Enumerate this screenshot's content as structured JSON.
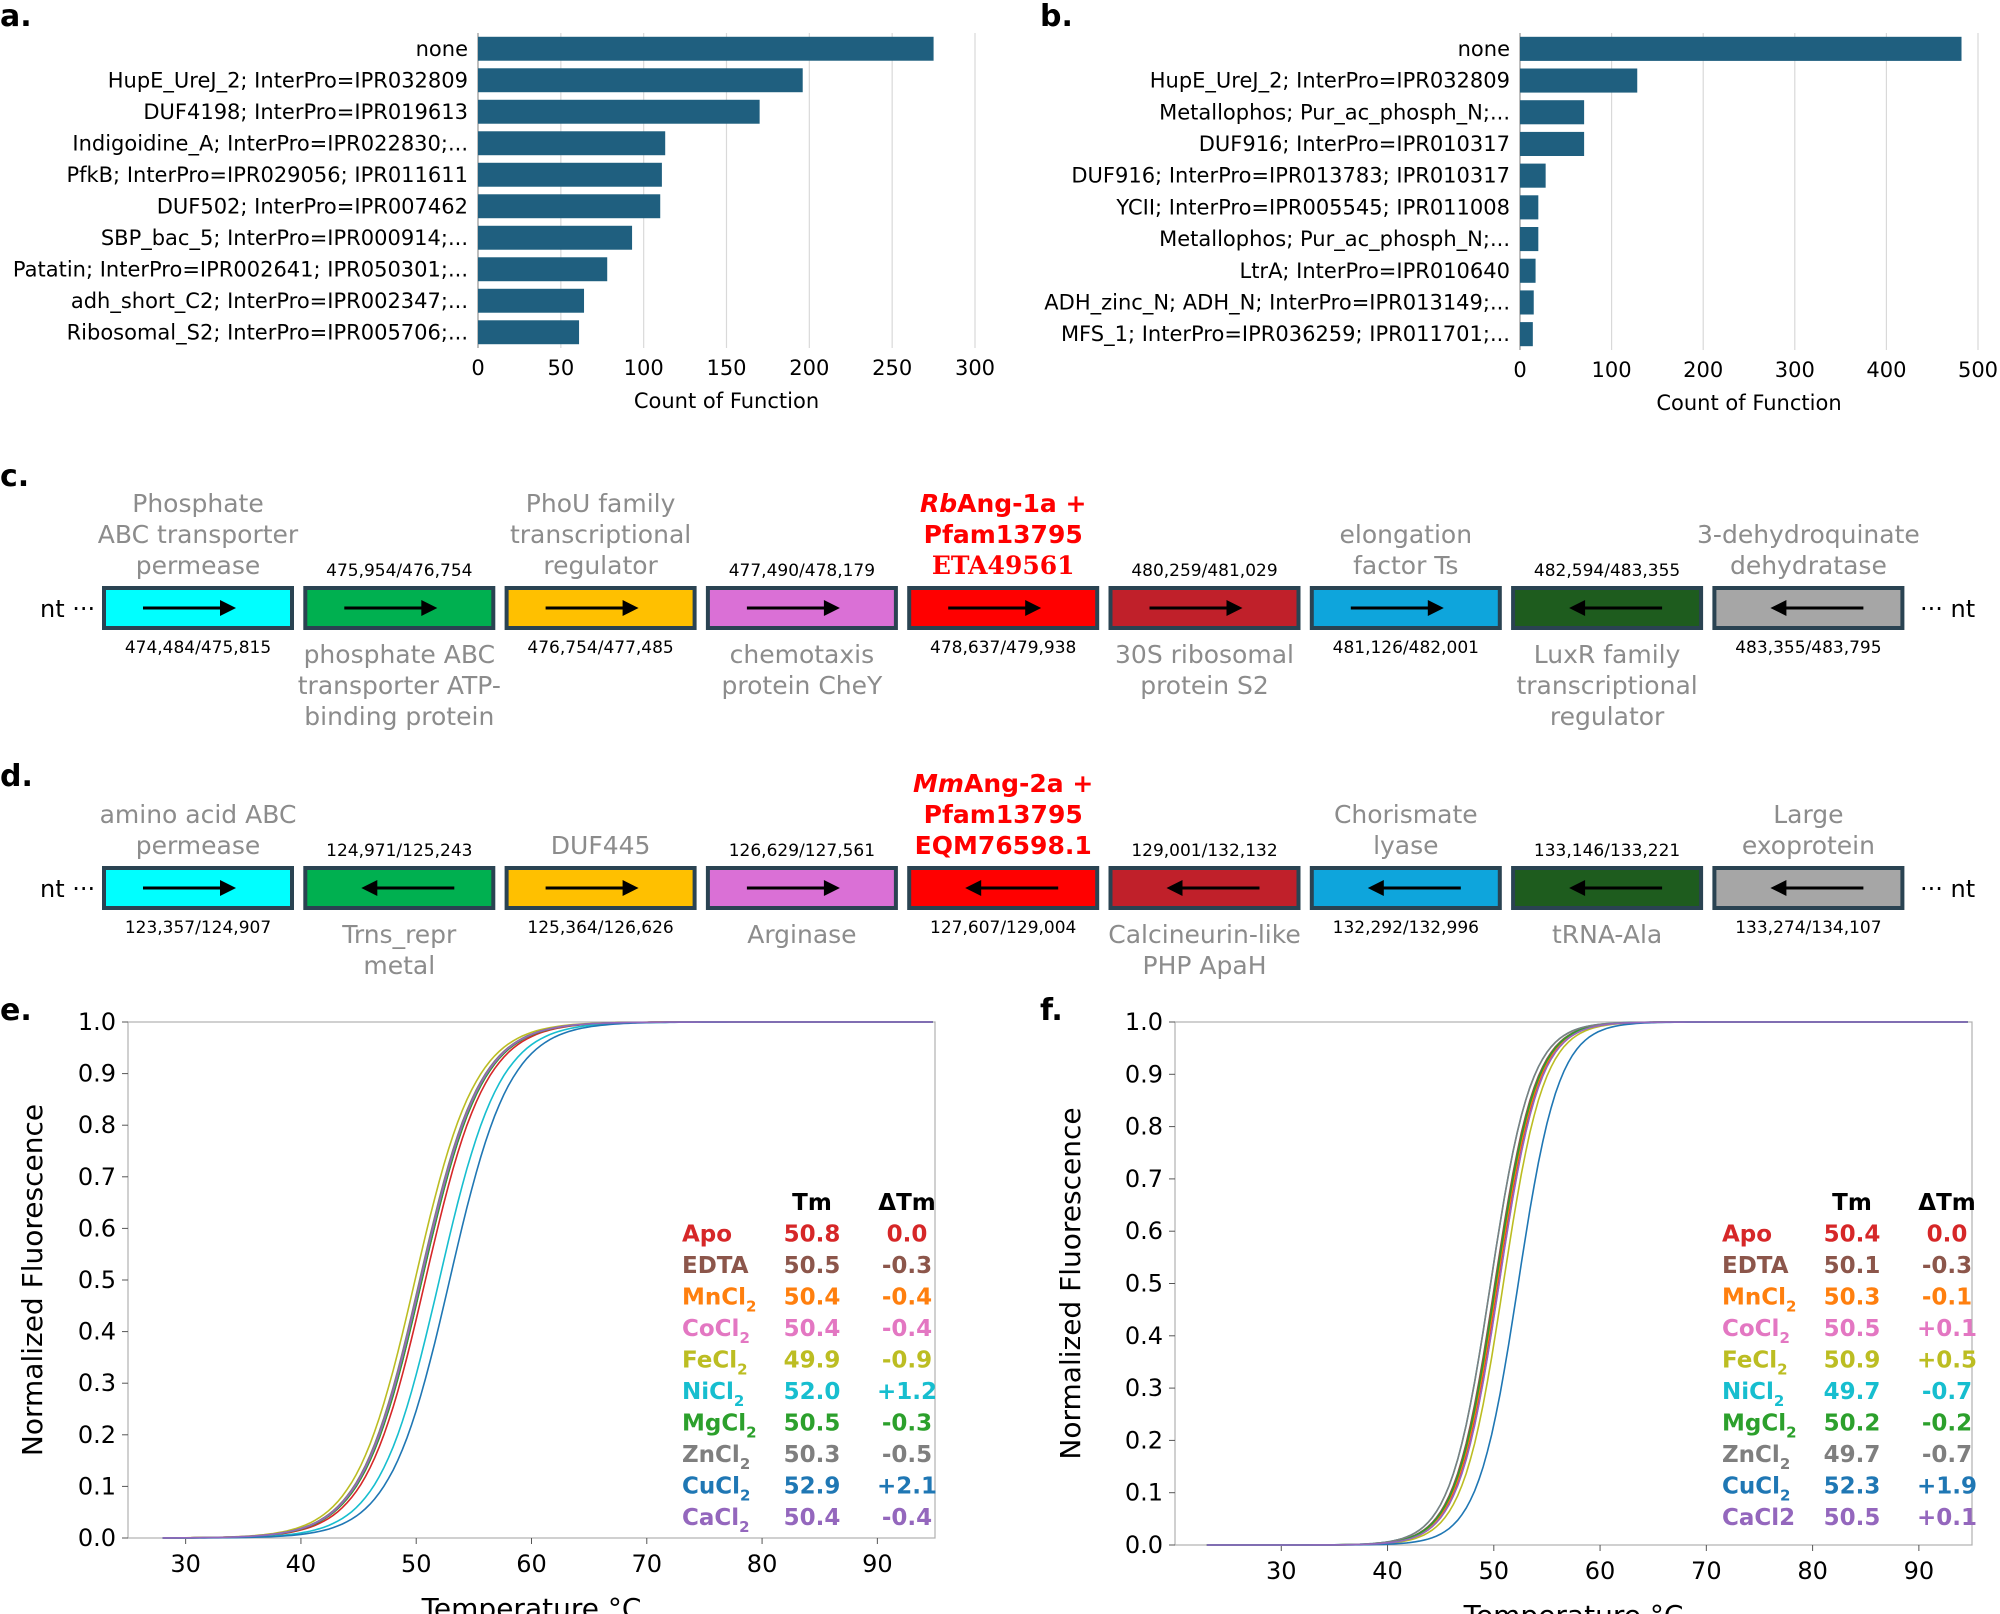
{
  "panel_labels": {
    "a": "a.",
    "b": "b.",
    "c": "c.",
    "d": "d.",
    "e": "e.",
    "f": "f."
  },
  "chart_data": [
    {
      "panel": "a",
      "type": "bar",
      "orientation": "horizontal",
      "color": "#1f5f7f",
      "categories": [
        "none",
        "HupE_UreJ_2; InterPro=IPR032809",
        "DUF4198; InterPro=IPR019613",
        "Indigoidine_A; InterPro=IPR022830;...",
        "PfkB; InterPro=IPR029056; IPR011611",
        "DUF502; InterPro=IPR007462",
        "SBP_bac_5; InterPro=IPR000914;...",
        "Patatin; InterPro=IPR002641; IPR050301;...",
        "adh_short_C2; InterPro=IPR002347;...",
        "Ribosomal_S2; InterPro=IPR005706;..."
      ],
      "values": [
        275,
        196,
        170,
        113,
        111,
        110,
        93,
        78,
        64,
        61
      ],
      "xlim": [
        0,
        300
      ],
      "xticks": [
        "0",
        "50",
        "100",
        "150",
        "200",
        "250",
        "300"
      ],
      "xlabel": "Count of Function"
    },
    {
      "panel": "b",
      "type": "bar",
      "orientation": "horizontal",
      "color": "#1f5f7f",
      "categories": [
        "none",
        "HupE_UreJ_2; InterPro=IPR032809",
        "Metallophos; Pur_ac_phosph_N;...",
        "DUF916; InterPro=IPR010317",
        "DUF916; InterPro=IPR013783; IPR010317",
        "YCII; InterPro=IPR005545; IPR011008",
        "Metallophos; Pur_ac_phosph_N;...",
        "LtrA; InterPro=IPR010640",
        "ADH_zinc_N; ADH_N; InterPro=IPR013149;...",
        "MFS_1; InterPro=IPR036259; IPR011701;..."
      ],
      "values": [
        482,
        128,
        70,
        70,
        28,
        20,
        20,
        17,
        15,
        14
      ],
      "xlim": [
        0,
        500
      ],
      "xticks": [
        "0",
        "100",
        "200",
        "300",
        "400",
        "500"
      ],
      "xlabel": "Count of Function"
    },
    {
      "panel": "e",
      "type": "line",
      "xlabel": "Temperature °C",
      "ylabel": "Normalized Fluorescence",
      "xlim": [
        25,
        95
      ],
      "ylim": [
        0,
        1
      ],
      "xticks": [
        "30",
        "40",
        "50",
        "60",
        "70",
        "80",
        "90"
      ],
      "yticks": [
        "0.0",
        "0.1",
        "0.2",
        "0.3",
        "0.4",
        "0.5",
        "0.6",
        "0.7",
        "0.8",
        "0.9",
        "1.0"
      ],
      "legend_headers": {
        "tm": "Tm",
        "dtm": "ΔTm"
      },
      "series": [
        {
          "name": "Apo",
          "sub": "",
          "color": "#d62728",
          "tm": "50.8",
          "dtm": "0.0",
          "tm_value": 50.8
        },
        {
          "name": "EDTA",
          "sub": "",
          "color": "#8c564b",
          "tm": "50.5",
          "dtm": "-0.3",
          "tm_value": 50.5
        },
        {
          "name": "MnCl",
          "sub": "2",
          "color": "#ff7f0e",
          "tm": "50.4",
          "dtm": "-0.4",
          "tm_value": 50.4
        },
        {
          "name": "CoCl",
          "sub": "2",
          "color": "#e377c2",
          "tm": "50.4",
          "dtm": "-0.4",
          "tm_value": 50.4
        },
        {
          "name": "FeCl",
          "sub": "2",
          "color": "#bcbd22",
          "tm": "49.9",
          "dtm": "-0.9",
          "tm_value": 49.9
        },
        {
          "name": "NiCl",
          "sub": "2",
          "color": "#17becf",
          "tm": "52.0",
          "dtm": "+1.2",
          "tm_value": 52.0
        },
        {
          "name": "MgCl",
          "sub": "2",
          "color": "#2ca02c",
          "tm": "50.5",
          "dtm": "-0.3",
          "tm_value": 50.5
        },
        {
          "name": "ZnCl",
          "sub": "2",
          "color": "#7f7f7f",
          "tm": "50.3",
          "dtm": "-0.5",
          "tm_value": 50.3
        },
        {
          "name": "CuCl",
          "sub": "2",
          "color": "#1f77b4",
          "tm": "52.9",
          "dtm": "+2.1",
          "tm_value": 52.9
        },
        {
          "name": "CaCl",
          "sub": "2",
          "color": "#9467bd",
          "tm": "50.4",
          "dtm": "-0.4",
          "tm_value": 50.4
        }
      ]
    },
    {
      "panel": "f",
      "type": "line",
      "xlabel": "Temperature °C",
      "ylabel": "Normalized Fluorescence",
      "xlim": [
        20,
        95
      ],
      "ylim": [
        0,
        1
      ],
      "xticks": [
        "30",
        "40",
        "50",
        "60",
        "70",
        "80",
        "90"
      ],
      "yticks": [
        "0.0",
        "0.1",
        "0.2",
        "0.3",
        "0.4",
        "0.5",
        "0.6",
        "0.7",
        "0.8",
        "0.9",
        "1.0"
      ],
      "legend_headers": {
        "tm": "Tm",
        "dtm": "ΔTm"
      },
      "series": [
        {
          "name": "Apo",
          "sub": "",
          "color": "#d62728",
          "tm": "50.4",
          "dtm": "0.0",
          "tm_value": 50.4
        },
        {
          "name": "EDTA",
          "sub": "",
          "color": "#8c564b",
          "tm": "50.1",
          "dtm": "-0.3",
          "tm_value": 50.1
        },
        {
          "name": "MnCl",
          "sub": "2",
          "color": "#ff7f0e",
          "tm": "50.3",
          "dtm": "-0.1",
          "tm_value": 50.3
        },
        {
          "name": "CoCl",
          "sub": "2",
          "color": "#e377c2",
          "tm": "50.5",
          "dtm": "+0.1",
          "tm_value": 50.5
        },
        {
          "name": "FeCl",
          "sub": "2",
          "color": "#bcbd22",
          "tm": "50.9",
          "dtm": "+0.5",
          "tm_value": 50.9
        },
        {
          "name": "NiCl",
          "sub": "2",
          "color": "#17becf",
          "tm": "49.7",
          "dtm": "-0.7",
          "tm_value": 49.7
        },
        {
          "name": "MgCl",
          "sub": "2",
          "color": "#2ca02c",
          "tm": "50.2",
          "dtm": "-0.2",
          "tm_value": 50.2
        },
        {
          "name": "ZnCl",
          "sub": "2",
          "color": "#7f7f7f",
          "tm": "49.7",
          "dtm": "-0.7",
          "tm_value": 49.7
        },
        {
          "name": "CuCl",
          "sub": "2",
          "color": "#1f77b4",
          "tm": "52.3",
          "dtm": "+1.9",
          "tm_value": 52.3
        },
        {
          "name": "CaCl2",
          "sub": "",
          "color": "#9467bd",
          "tm": "50.5",
          "dtm": "+0.1",
          "tm_value": 50.5
        }
      ]
    }
  ],
  "gene_maps": [
    {
      "panel": "c",
      "nt_left": "nt ···",
      "nt_right": "··· nt",
      "genes": [
        {
          "color": "#00ffff",
          "dir": "right",
          "above": [
            "Phosphate",
            "ABC transporter",
            "permease"
          ],
          "below": [],
          "coord_above": "",
          "coord_below": "474,484/475,815"
        },
        {
          "color": "#00b050",
          "dir": "right",
          "above": [],
          "below": [
            "phosphate ABC",
            "transporter ATP-",
            "binding protein"
          ],
          "coord_above": "475,954/476,754",
          "coord_below": ""
        },
        {
          "color": "#ffc000",
          "dir": "right",
          "above": [
            "PhoU family",
            "transcriptional",
            "regulator"
          ],
          "below": [],
          "coord_above": "",
          "coord_below": "476,754/477,485"
        },
        {
          "color": "#da70d6",
          "dir": "right",
          "above": [],
          "below": [
            "chemotaxis",
            "protein CheY"
          ],
          "coord_above": "477,490/478,179",
          "coord_below": ""
        },
        {
          "color": "#ff0000",
          "dir": "right",
          "highlight": true,
          "above_italic": "Rb",
          "above": [
            "Ang-1a +",
            "Pfam13795",
            "ETA49561"
          ],
          "below": [],
          "coord_above": "",
          "coord_below": "478,637/479,938"
        },
        {
          "color": "#c0202a",
          "dir": "right",
          "above": [],
          "below": [
            "30S ribosomal",
            "protein S2"
          ],
          "coord_above": "480,259/481,029",
          "coord_below": ""
        },
        {
          "color": "#0ea5dc",
          "dir": "right",
          "above": [
            "elongation",
            "factor Ts"
          ],
          "below": [],
          "coord_above": "",
          "coord_below": "481,126/482,001"
        },
        {
          "color": "#1e5c1e",
          "dir": "left",
          "above": [],
          "below": [
            "LuxR family",
            "transcriptional",
            "regulator"
          ],
          "coord_above": "482,594/483,355",
          "coord_below": ""
        },
        {
          "color": "#a6a6a6",
          "dir": "left",
          "above": [
            "3-dehydroquinate",
            "dehydratase"
          ],
          "below": [],
          "coord_above": "",
          "coord_below": "483,355/483,795"
        }
      ]
    },
    {
      "panel": "d",
      "nt_left": "nt ···",
      "nt_right": "··· nt",
      "genes": [
        {
          "color": "#00ffff",
          "dir": "right",
          "above": [
            "amino acid ABC",
            "permease"
          ],
          "below": [],
          "coord_above": "",
          "coord_below": "123,357/124,907"
        },
        {
          "color": "#00b050",
          "dir": "left",
          "above": [],
          "below": [
            "Trns_repr",
            "metal"
          ],
          "coord_above": "124,971/125,243",
          "coord_below": ""
        },
        {
          "color": "#ffc000",
          "dir": "right",
          "above": [
            "DUF445"
          ],
          "below": [],
          "coord_above": "",
          "coord_below": "125,364/126,626"
        },
        {
          "color": "#da70d6",
          "dir": "right",
          "above": [],
          "below": [
            "Arginase"
          ],
          "coord_above": "126,629/127,561",
          "coord_below": ""
        },
        {
          "color": "#ff0000",
          "dir": "left",
          "highlight": true,
          "above_italic": "Mm",
          "above": [
            "Ang-2a +",
            "Pfam13795",
            "EQM76598.1"
          ],
          "below": [],
          "coord_above": "",
          "coord_below": "127,607/129,004"
        },
        {
          "color": "#c0202a",
          "dir": "left",
          "above": [],
          "below": [
            "Calcineurin-like",
            "PHP ApaH"
          ],
          "coord_above": "129,001/132,132",
          "coord_below": ""
        },
        {
          "color": "#0ea5dc",
          "dir": "left",
          "above": [
            "Chorismate",
            "lyase"
          ],
          "below": [],
          "coord_above": "",
          "coord_below": "132,292/132,996"
        },
        {
          "color": "#1e5c1e",
          "dir": "left",
          "above": [],
          "below": [
            "tRNA-Ala"
          ],
          "coord_above": "133,146/133,221",
          "coord_below": ""
        },
        {
          "color": "#a6a6a6",
          "dir": "left",
          "above": [
            "Large",
            "exoprotein"
          ],
          "below": [],
          "coord_above": "",
          "coord_below": "133,274/134,107"
        }
      ]
    }
  ]
}
